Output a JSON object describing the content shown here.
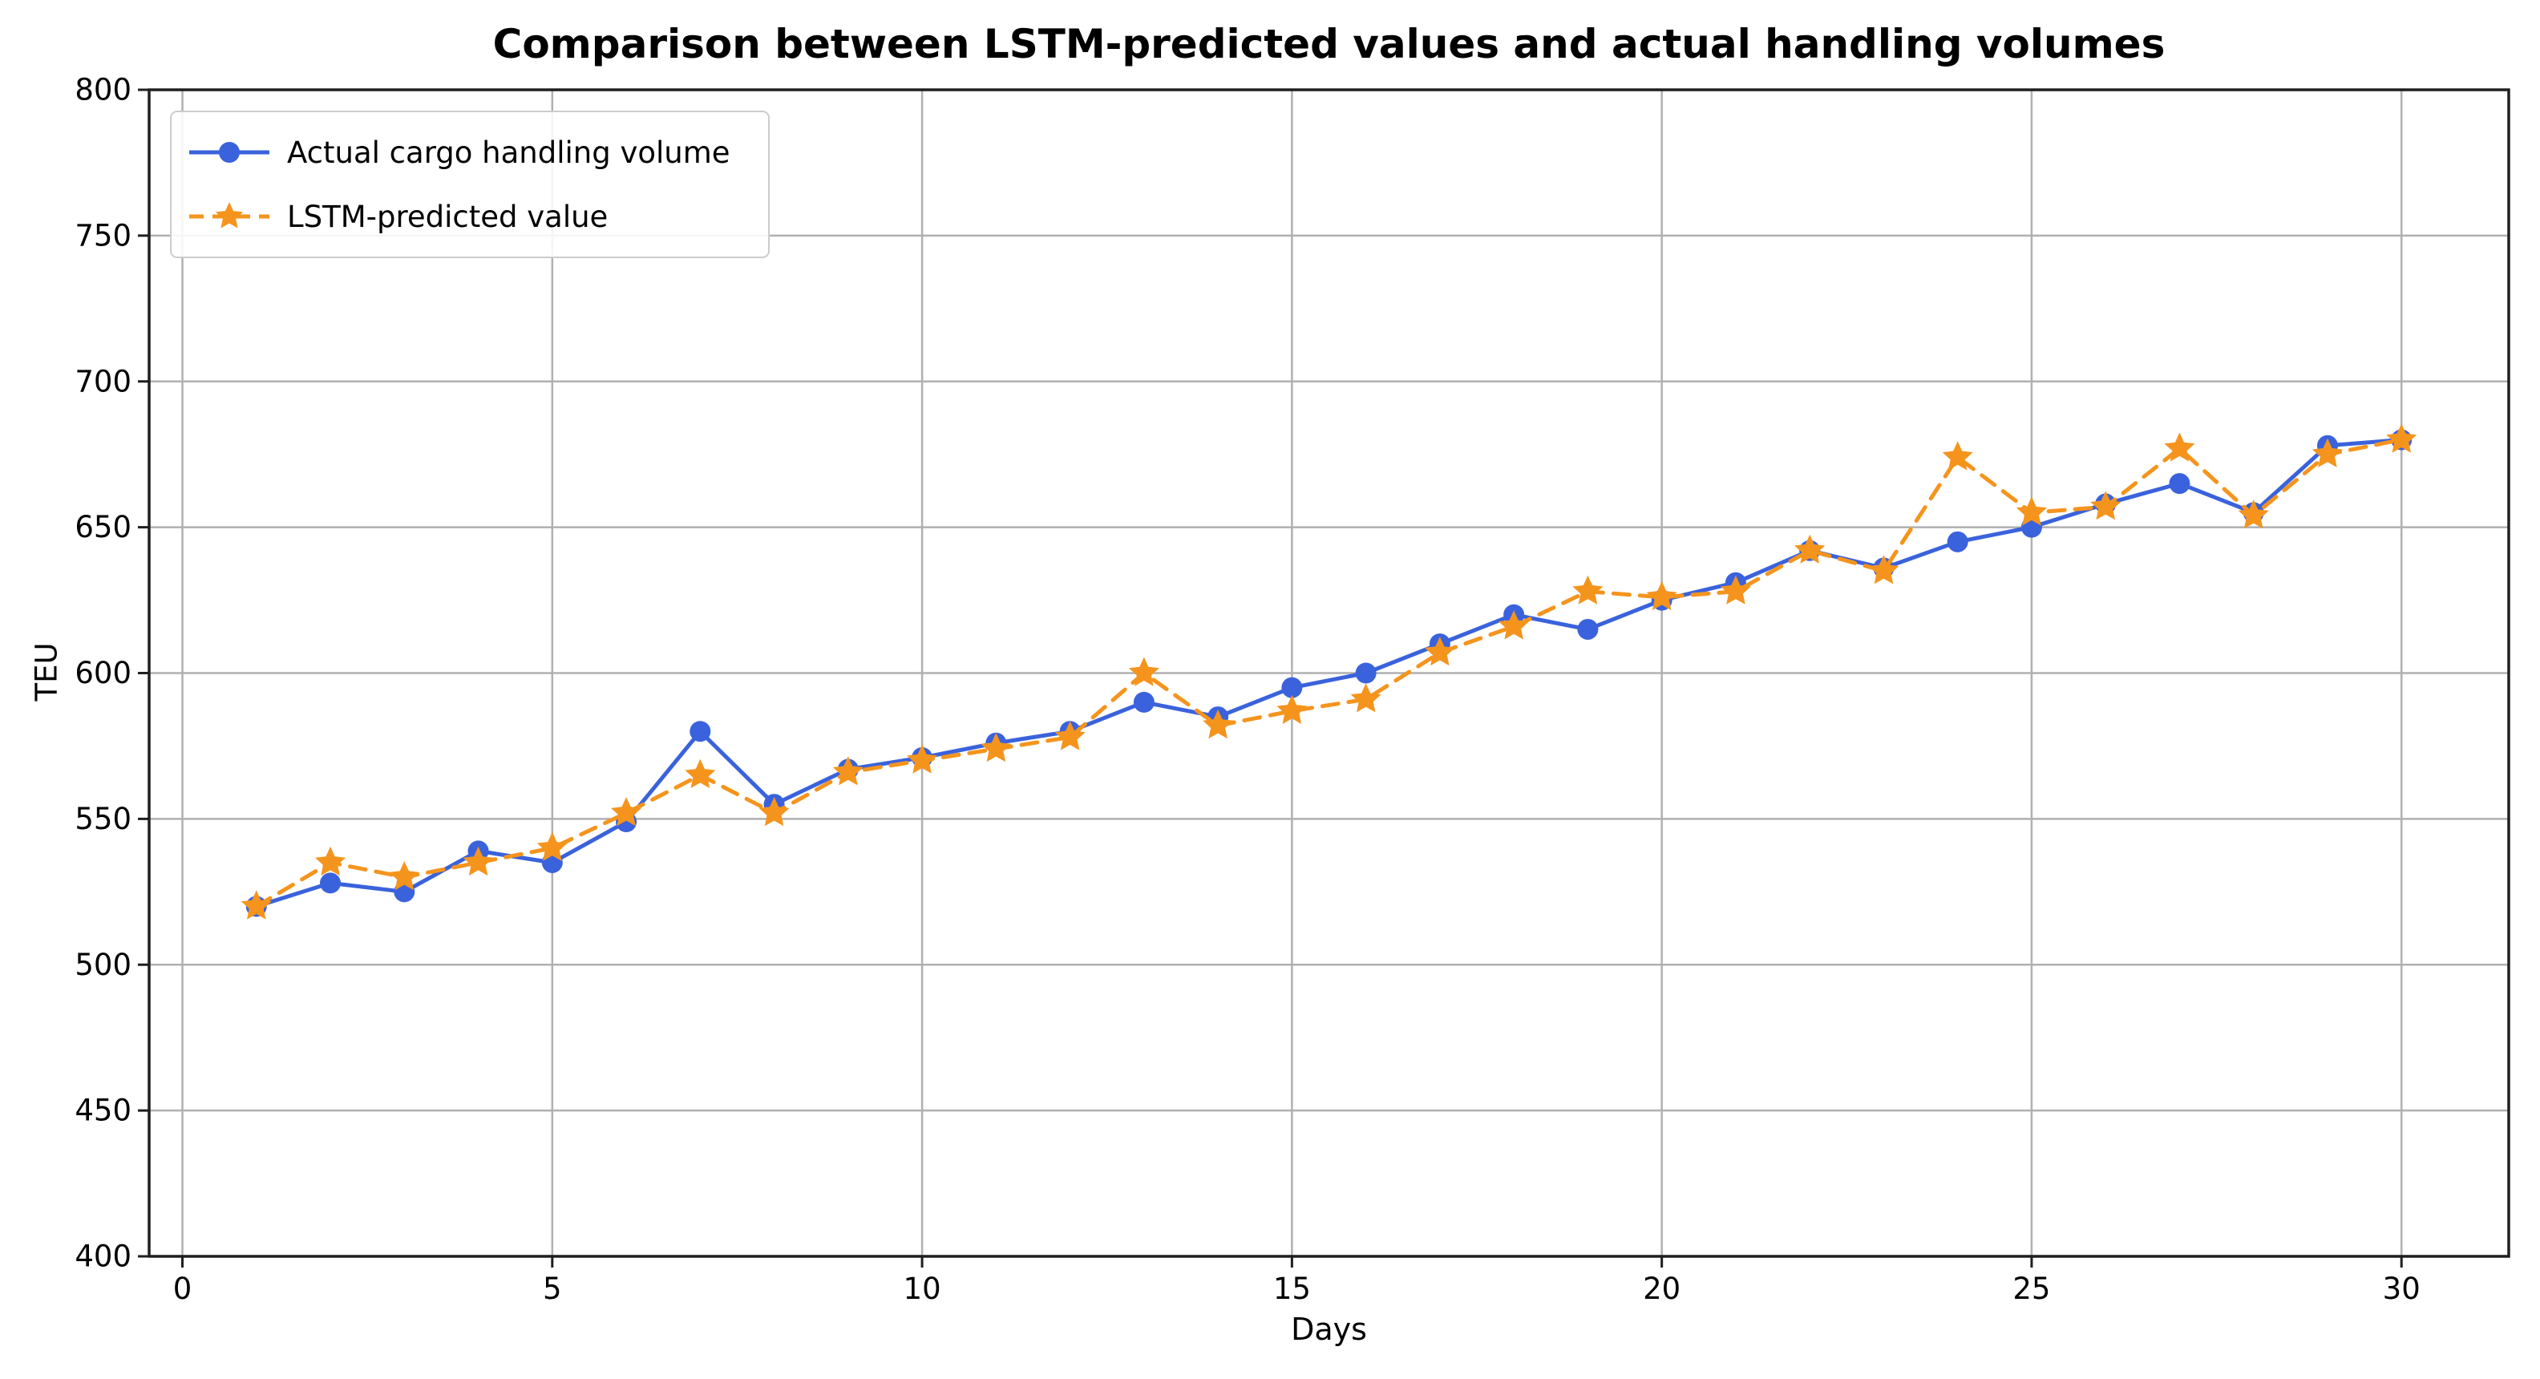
{
  "chart_data": {
    "type": "line",
    "title": "Comparison between LSTM-predicted values and actual handling volumes",
    "xlabel": "Days",
    "ylabel": "TEU",
    "x": [
      1,
      2,
      3,
      4,
      5,
      6,
      7,
      8,
      9,
      10,
      11,
      12,
      13,
      14,
      15,
      16,
      17,
      18,
      19,
      20,
      21,
      22,
      23,
      24,
      25,
      26,
      27,
      28,
      29,
      30
    ],
    "xlim": [
      -0.45,
      31.45
    ],
    "ylim": [
      400,
      800
    ],
    "xticks": [
      0,
      5,
      10,
      15,
      20,
      25,
      30
    ],
    "yticks": [
      400,
      450,
      500,
      550,
      600,
      650,
      700,
      750,
      800
    ],
    "grid": true,
    "legend_position": "upper left",
    "series": [
      {
        "name": "Actual cargo handling volume",
        "color": "#3a62dc",
        "line_style": "solid",
        "marker": "circle",
        "values": [
          520,
          528,
          525,
          539,
          535,
          549,
          580,
          555,
          567,
          571,
          576,
          580,
          590,
          585,
          595,
          600,
          610,
          620,
          615,
          625,
          631,
          642,
          636,
          645,
          650,
          658,
          665,
          655,
          678,
          680
        ]
      },
      {
        "name": "LSTM-predicted value",
        "color": "#f5941d",
        "line_style": "dashed",
        "marker": "star",
        "values": [
          520,
          535,
          530,
          535,
          540,
          552,
          565,
          552,
          566,
          570,
          574,
          578,
          600,
          582,
          587,
          591,
          607,
          616,
          628,
          626,
          628,
          642,
          635,
          674,
          655,
          657,
          677,
          654,
          675,
          680
        ]
      }
    ],
    "colors": {
      "gridline": "#b0b0b0",
      "spine": "#1f1f1f",
      "tick_text": "#000000",
      "background": "#ffffff"
    }
  }
}
